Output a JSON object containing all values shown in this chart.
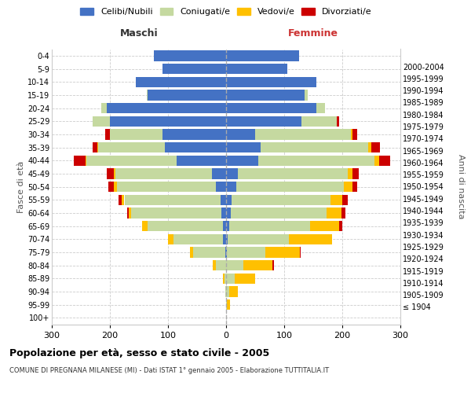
{
  "age_groups": [
    "100+",
    "95-99",
    "90-94",
    "85-89",
    "80-84",
    "75-79",
    "70-74",
    "65-69",
    "60-64",
    "55-59",
    "50-54",
    "45-49",
    "40-44",
    "35-39",
    "30-34",
    "25-29",
    "20-24",
    "15-19",
    "10-14",
    "5-9",
    "0-4"
  ],
  "birth_years": [
    "≤ 1904",
    "1905-1909",
    "1910-1914",
    "1915-1919",
    "1920-1924",
    "1925-1929",
    "1930-1934",
    "1935-1939",
    "1940-1944",
    "1945-1949",
    "1950-1954",
    "1955-1959",
    "1960-1964",
    "1965-1969",
    "1970-1974",
    "1975-1979",
    "1980-1984",
    "1985-1989",
    "1990-1994",
    "1995-1999",
    "2000-2004"
  ],
  "males": {
    "celibi": [
      0,
      0,
      0,
      0,
      0,
      2,
      5,
      5,
      8,
      10,
      18,
      25,
      85,
      105,
      110,
      200,
      205,
      135,
      155,
      110,
      125
    ],
    "coniugati": [
      0,
      0,
      1,
      3,
      18,
      55,
      85,
      130,
      155,
      165,
      170,
      165,
      155,
      115,
      90,
      30,
      10,
      2,
      0,
      0,
      0
    ],
    "vedovi": [
      0,
      0,
      0,
      2,
      5,
      5,
      10,
      10,
      5,
      5,
      5,
      3,
      2,
      2,
      0,
      0,
      0,
      0,
      0,
      0,
      0
    ],
    "divorziati": [
      0,
      0,
      0,
      0,
      0,
      0,
      0,
      0,
      2,
      5,
      10,
      12,
      20,
      8,
      8,
      0,
      0,
      0,
      0,
      0,
      0
    ]
  },
  "females": {
    "nubili": [
      0,
      0,
      0,
      0,
      0,
      2,
      3,
      5,
      8,
      10,
      18,
      20,
      55,
      60,
      50,
      130,
      155,
      135,
      155,
      105,
      125
    ],
    "coniugate": [
      0,
      2,
      5,
      15,
      30,
      65,
      105,
      140,
      165,
      170,
      185,
      190,
      200,
      185,
      165,
      60,
      15,
      5,
      0,
      0,
      0
    ],
    "vedove": [
      0,
      5,
      15,
      35,
      50,
      60,
      75,
      50,
      25,
      20,
      15,
      8,
      8,
      5,
      2,
      0,
      0,
      0,
      0,
      0,
      0
    ],
    "divorziate": [
      0,
      0,
      0,
      0,
      2,
      2,
      0,
      5,
      8,
      10,
      8,
      10,
      20,
      15,
      8,
      5,
      0,
      0,
      0,
      0,
      0
    ]
  },
  "colors": {
    "celibi": "#4472c4",
    "coniugati": "#c5d9a0",
    "vedovi": "#ffc000",
    "divorziati": "#cc0000"
  },
  "xlim": 300,
  "title": "Popolazione per età, sesso e stato civile - 2005",
  "subtitle": "COMUNE DI PREGNANA MILANESE (MI) - Dati ISTAT 1° gennaio 2005 - Elaborazione TUTTITALIA.IT",
  "ylabel_left": "Fasce di età",
  "ylabel_right": "Anni di nascita",
  "xlabel_left": "Maschi",
  "xlabel_right": "Femmine",
  "background_color": "#ffffff",
  "grid_color": "#cccccc"
}
